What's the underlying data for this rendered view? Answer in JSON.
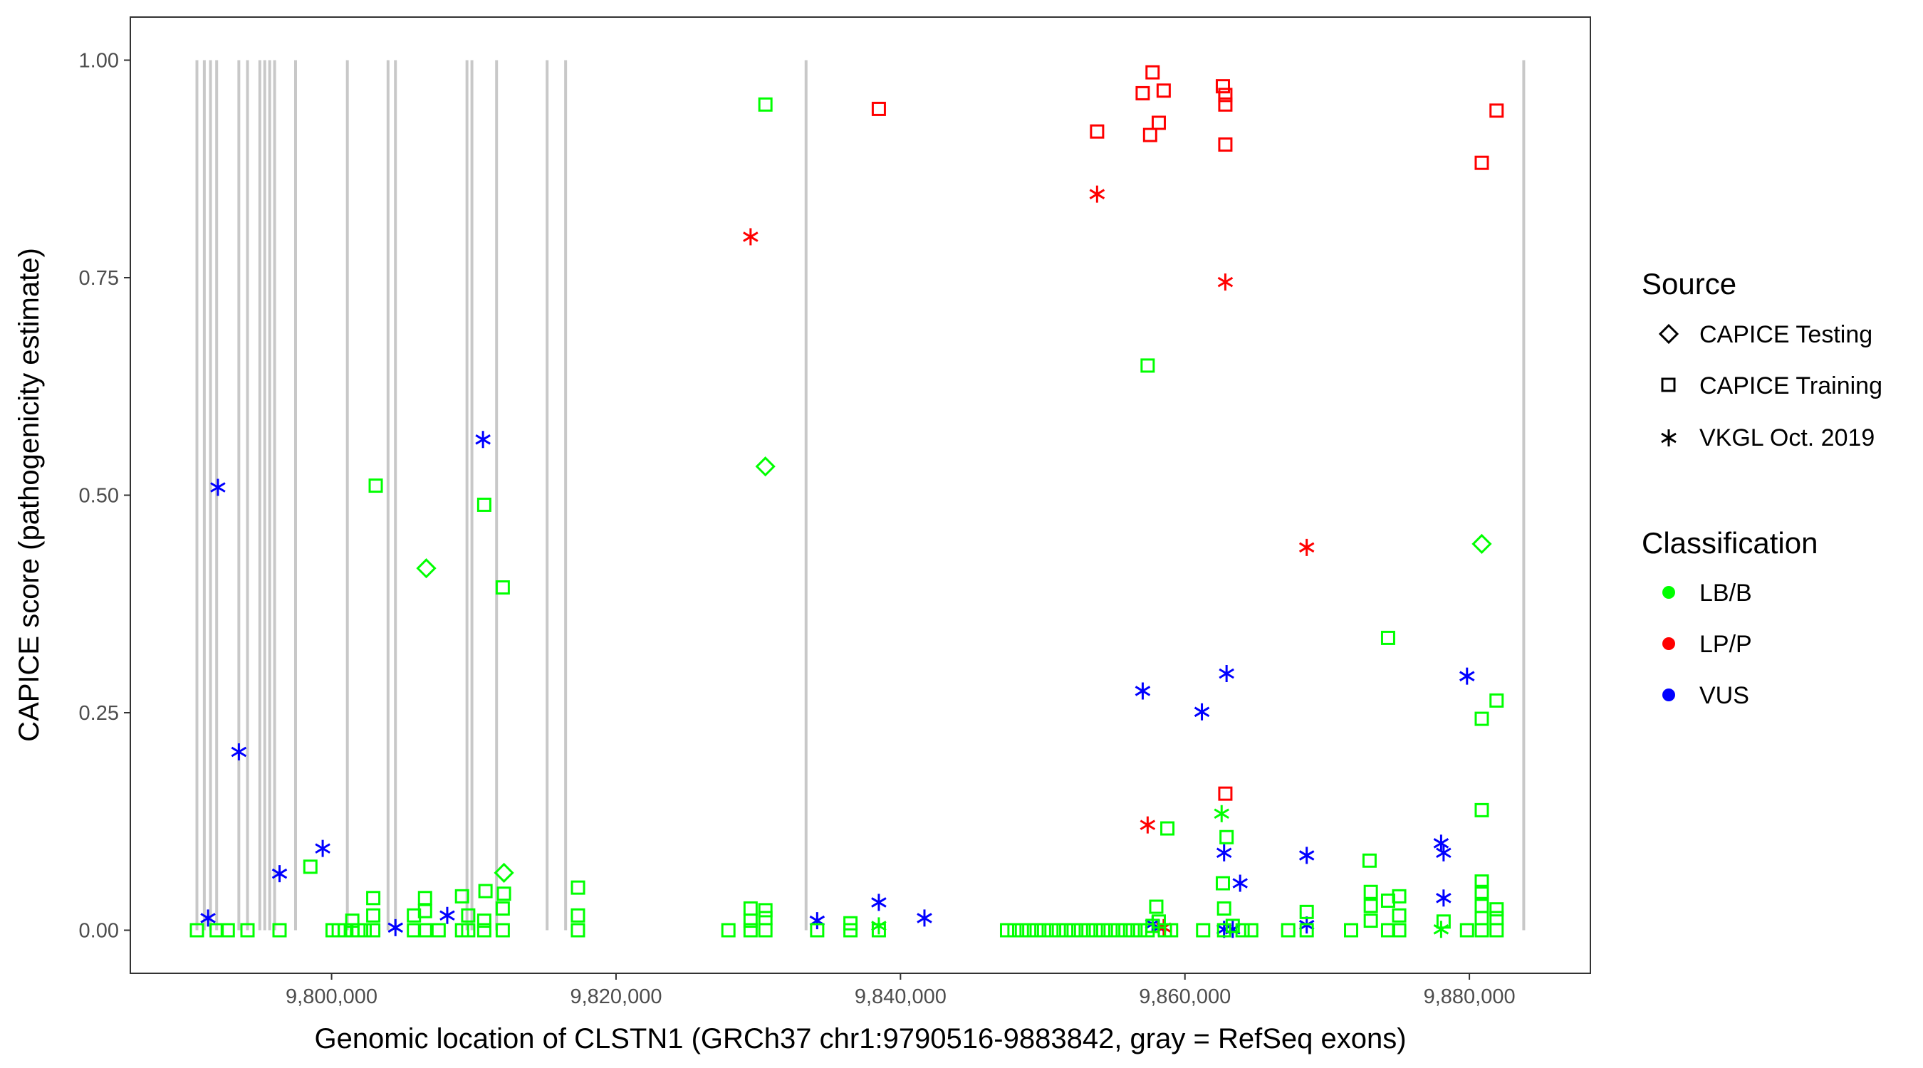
{
  "chart_data": {
    "type": "scatter",
    "xlabel": "Genomic location of CLSTN1 (GRCh37 chr1:9790516-9883842, gray = RefSeq exons)",
    "ylabel": "CAPICE score (pathogenicity estimate)",
    "xlim": [
      9785850,
      9888508
    ],
    "ylim": [
      -0.0495,
      1.0495
    ],
    "x_ticks": [
      9800000,
      9820000,
      9840000,
      9860000,
      9880000
    ],
    "x_tick_labels": [
      "9,800,000",
      "9,820,000",
      "9,840,000",
      "9,860,000",
      "9,880,000"
    ],
    "y_ticks": [
      0,
      0.25,
      0.5,
      0.75,
      1.0
    ],
    "y_tick_labels": [
      "0.00",
      "0.25",
      "0.50",
      "0.75",
      "1.00"
    ],
    "grid": false,
    "exon_lines_color": "#c8c8c8",
    "exon_positions": [
      9790532,
      9791052,
      9791486,
      9791919,
      9793480,
      9794087,
      9794954,
      9795300,
      9795647,
      9795994,
      9797468,
      9801109,
      9803970,
      9804490,
      9809519,
      9809866,
      9811600,
      9815155,
      9816455,
      9833362,
      9883821
    ],
    "legend": {
      "placement": "right",
      "source_title": "Source",
      "source_entries": [
        {
          "label": "CAPICE Testing",
          "shape": "diamond"
        },
        {
          "label": "CAPICE Training",
          "shape": "square"
        },
        {
          "label": "VKGL Oct. 2019",
          "shape": "asterisk"
        }
      ],
      "class_title": "Classification",
      "class_entries": [
        {
          "label": "LB/B",
          "color": "#00ff00"
        },
        {
          "label": "LP/P",
          "color": "#ff0000"
        },
        {
          "label": "VUS",
          "color": "#0000ff"
        }
      ]
    },
    "points": [
      [
        9792006,
        0.509,
        "VKGL Oct. 2019",
        "VUS"
      ],
      [
        9793480,
        0.205,
        "VKGL Oct. 2019",
        "VUS"
      ],
      [
        9791312,
        0.014,
        "VKGL Oct. 2019",
        "VUS"
      ],
      [
        9796341,
        0.065,
        "VKGL Oct. 2019",
        "VUS"
      ],
      [
        9799375,
        0.094,
        "VKGL Oct. 2019",
        "VUS"
      ],
      [
        9804490,
        0.003,
        "VKGL Oct. 2019",
        "VUS"
      ],
      [
        9808132,
        0.017,
        "VKGL Oct. 2019",
        "VUS"
      ],
      [
        9810646,
        0.564,
        "VKGL Oct. 2019",
        "VUS"
      ],
      [
        9834142,
        0.011,
        "VKGL Oct. 2019",
        "VUS"
      ],
      [
        9838477,
        0.032,
        "VKGL Oct. 2019",
        "VUS"
      ],
      [
        9841685,
        0.014,
        "VKGL Oct. 2019",
        "VUS"
      ],
      [
        9857031,
        0.275,
        "VKGL Oct. 2019",
        "VUS"
      ],
      [
        9861193,
        0.251,
        "VKGL Oct. 2019",
        "VUS"
      ],
      [
        9862927,
        0.295,
        "VKGL Oct. 2019",
        "VUS"
      ],
      [
        9862753,
        0.089,
        "VKGL Oct. 2019",
        "VUS"
      ],
      [
        9863880,
        0.054,
        "VKGL Oct. 2019",
        "VUS"
      ],
      [
        9868562,
        0.086,
        "VKGL Oct. 2019",
        "VUS"
      ],
      [
        9868562,
        0.006,
        "VKGL Oct. 2019",
        "VUS"
      ],
      [
        9879833,
        0.292,
        "VKGL Oct. 2019",
        "VUS"
      ],
      [
        9878012,
        0.1,
        "VKGL Oct. 2019",
        "VUS"
      ],
      [
        9878186,
        0.089,
        "VKGL Oct. 2019",
        "VUS"
      ],
      [
        9878186,
        0.037,
        "VKGL Oct. 2019",
        "VUS"
      ],
      [
        9857725,
        0.007,
        "VKGL Oct. 2019",
        "VUS"
      ],
      [
        9858160,
        0.003,
        "VKGL Oct. 2019",
        "VUS"
      ],
      [
        9862753,
        0.001,
        "VKGL Oct. 2019",
        "VUS"
      ],
      [
        9863360,
        0.001,
        "VKGL Oct. 2019",
        "VUS"
      ],
      [
        9829460,
        0.797,
        "VKGL Oct. 2019",
        "LP/P"
      ],
      [
        9853823,
        0.846,
        "VKGL Oct. 2019",
        "LP/P"
      ],
      [
        9862840,
        0.745,
        "VKGL Oct. 2019",
        "LP/P"
      ],
      [
        9868562,
        0.44,
        "VKGL Oct. 2019",
        "LP/P"
      ],
      [
        9857378,
        0.121,
        "VKGL Oct. 2019",
        "LP/P"
      ],
      [
        9858505,
        0.003,
        "VKGL Oct. 2019",
        "LP/P"
      ],
      [
        9862580,
        0.134,
        "VKGL Oct. 2019",
        "LB/B"
      ],
      [
        9838477,
        0.005,
        "VKGL Oct. 2019",
        "LB/B"
      ],
      [
        9878012,
        0.001,
        "VKGL Oct. 2019",
        "LB/B"
      ],
      [
        9838477,
        0.944,
        "CAPICE Training",
        "LP/P"
      ],
      [
        9853823,
        0.918,
        "CAPICE Training",
        "LP/P"
      ],
      [
        9857725,
        0.986,
        "CAPICE Training",
        "LP/P"
      ],
      [
        9857031,
        0.962,
        "CAPICE Training",
        "LP/P"
      ],
      [
        9858505,
        0.965,
        "CAPICE Training",
        "LP/P"
      ],
      [
        9858160,
        0.928,
        "CAPICE Training",
        "LP/P"
      ],
      [
        9857552,
        0.914,
        "CAPICE Training",
        "LP/P"
      ],
      [
        9862667,
        0.97,
        "CAPICE Training",
        "LP/P"
      ],
      [
        9862840,
        0.96,
        "CAPICE Training",
        "LP/P"
      ],
      [
        9862840,
        0.949,
        "CAPICE Training",
        "LP/P"
      ],
      [
        9862840,
        0.903,
        "CAPICE Training",
        "LP/P"
      ],
      [
        9881912,
        0.942,
        "CAPICE Training",
        "LP/P"
      ],
      [
        9880871,
        0.882,
        "CAPICE Training",
        "LP/P"
      ],
      [
        9862840,
        0.157,
        "CAPICE Training",
        "LP/P"
      ],
      [
        9830502,
        0.949,
        "CAPICE Training",
        "LB/B"
      ],
      [
        9803103,
        0.511,
        "CAPICE Training",
        "LB/B"
      ],
      [
        9810733,
        0.489,
        "CAPICE Training",
        "LB/B"
      ],
      [
        9812034,
        0.394,
        "CAPICE Training",
        "LB/B"
      ],
      [
        9857378,
        0.649,
        "CAPICE Training",
        "LB/B"
      ],
      [
        9874284,
        0.336,
        "CAPICE Training",
        "LB/B"
      ],
      [
        9881912,
        0.264,
        "CAPICE Training",
        "LB/B"
      ],
      [
        9880871,
        0.243,
        "CAPICE Training",
        "LB/B"
      ],
      [
        9880871,
        0.138,
        "CAPICE Training",
        "LB/B"
      ],
      [
        9858765,
        0.117,
        "CAPICE Training",
        "LB/B"
      ],
      [
        9862927,
        0.107,
        "CAPICE Training",
        "LB/B"
      ],
      [
        9798508,
        0.073,
        "CAPICE Training",
        "LB/B"
      ],
      [
        9872980,
        0.08,
        "CAPICE Training",
        "LB/B"
      ],
      [
        9817326,
        0.049,
        "CAPICE Training",
        "LB/B"
      ],
      [
        9880871,
        0.056,
        "CAPICE Training",
        "LB/B"
      ],
      [
        9880871,
        0.044,
        "CAPICE Training",
        "LB/B"
      ],
      [
        9873067,
        0.044,
        "CAPICE Training",
        "LB/B"
      ],
      [
        9862667,
        0.054,
        "CAPICE Training",
        "LB/B"
      ],
      [
        9810819,
        0.045,
        "CAPICE Training",
        "LB/B"
      ],
      [
        9812120,
        0.042,
        "CAPICE Training",
        "LB/B"
      ],
      [
        9809172,
        0.039,
        "CAPICE Training",
        "LB/B"
      ],
      [
        9806571,
        0.037,
        "CAPICE Training",
        "LB/B"
      ],
      [
        9802930,
        0.037,
        "CAPICE Training",
        "LB/B"
      ],
      [
        9875064,
        0.039,
        "CAPICE Training",
        "LB/B"
      ],
      [
        9874284,
        0.034,
        "CAPICE Training",
        "LB/B"
      ],
      [
        9857985,
        0.027,
        "CAPICE Training",
        "LB/B"
      ],
      [
        9862753,
        0.025,
        "CAPICE Training",
        "LB/B"
      ],
      [
        9829460,
        0.025,
        "CAPICE Training",
        "LB/B"
      ],
      [
        9830502,
        0.023,
        "CAPICE Training",
        "LB/B"
      ],
      [
        9881912,
        0.024,
        "CAPICE Training",
        "LB/B"
      ],
      [
        9868562,
        0.021,
        "CAPICE Training",
        "LB/B"
      ],
      [
        9812034,
        0.025,
        "CAPICE Training",
        "LB/B"
      ],
      [
        9880871,
        0.028,
        "CAPICE Training",
        "LB/B"
      ],
      [
        9873067,
        0.028,
        "CAPICE Training",
        "LB/B"
      ],
      [
        9801456,
        0.011,
        "CAPICE Training",
        "LB/B"
      ],
      [
        9805791,
        0.017,
        "CAPICE Training",
        "LB/B"
      ],
      [
        9806571,
        0.022,
        "CAPICE Training",
        "LB/B"
      ],
      [
        9802930,
        0.017,
        "CAPICE Training",
        "LB/B"
      ],
      [
        9809606,
        0.017,
        "CAPICE Training",
        "LB/B"
      ],
      [
        9810733,
        0.011,
        "CAPICE Training",
        "LB/B"
      ],
      [
        9817322,
        0.017,
        "CAPICE Training",
        "LB/B"
      ],
      [
        9875064,
        0.017,
        "CAPICE Training",
        "LB/B"
      ],
      [
        9873067,
        0.011,
        "CAPICE Training",
        "LB/B"
      ],
      [
        9880871,
        0.014,
        "CAPICE Training",
        "LB/B"
      ],
      [
        9881912,
        0.014,
        "CAPICE Training",
        "LB/B"
      ],
      [
        9836483,
        0.008,
        "CAPICE Training",
        "LB/B"
      ],
      [
        9829460,
        0.011,
        "CAPICE Training",
        "LB/B"
      ],
      [
        9830502,
        0.014,
        "CAPICE Training",
        "LB/B"
      ],
      [
        9878186,
        0.01,
        "CAPICE Training",
        "LB/B"
      ],
      [
        9790532,
        0,
        "CAPICE Training",
        "LB/B"
      ],
      [
        9791919,
        0,
        "CAPICE Training",
        "LB/B"
      ],
      [
        9792699,
        0,
        "CAPICE Training",
        "LB/B"
      ],
      [
        9794087,
        0,
        "CAPICE Training",
        "LB/B"
      ],
      [
        9796341,
        0,
        "CAPICE Training",
        "LB/B"
      ],
      [
        9800069,
        0,
        "CAPICE Training",
        "LB/B"
      ],
      [
        9800502,
        0,
        "CAPICE Training",
        "LB/B"
      ],
      [
        9800936,
        0,
        "CAPICE Training",
        "LB/B"
      ],
      [
        9801456,
        0,
        "CAPICE Training",
        "LB/B"
      ],
      [
        9801890,
        0,
        "CAPICE Training",
        "LB/B"
      ],
      [
        9802323,
        0,
        "CAPICE Training",
        "LB/B"
      ],
      [
        9802930,
        0,
        "CAPICE Training",
        "LB/B"
      ],
      [
        9805791,
        0,
        "CAPICE Training",
        "LB/B"
      ],
      [
        9806571,
        0,
        "CAPICE Training",
        "LB/B"
      ],
      [
        9807525,
        0,
        "CAPICE Training",
        "LB/B"
      ],
      [
        9809172,
        0,
        "CAPICE Training",
        "LB/B"
      ],
      [
        9809606,
        0,
        "CAPICE Training",
        "LB/B"
      ],
      [
        9810733,
        0,
        "CAPICE Training",
        "LB/B"
      ],
      [
        9812034,
        0,
        "CAPICE Training",
        "LB/B"
      ],
      [
        9817322,
        0,
        "CAPICE Training",
        "LB/B"
      ],
      [
        9827900,
        0,
        "CAPICE Training",
        "LB/B"
      ],
      [
        9829460,
        0,
        "CAPICE Training",
        "LB/B"
      ],
      [
        9830502,
        0,
        "CAPICE Training",
        "LB/B"
      ],
      [
        9834142,
        0,
        "CAPICE Training",
        "LB/B"
      ],
      [
        9836483,
        0,
        "CAPICE Training",
        "LB/B"
      ],
      [
        9838477,
        0,
        "CAPICE Training",
        "LB/B"
      ],
      [
        9847494,
        0,
        "CAPICE Training",
        "LB/B"
      ],
      [
        9848014,
        0,
        "CAPICE Training",
        "LB/B"
      ],
      [
        9848534,
        0,
        "CAPICE Training",
        "LB/B"
      ],
      [
        9849054,
        0,
        "CAPICE Training",
        "LB/B"
      ],
      [
        9849574,
        0,
        "CAPICE Training",
        "LB/B"
      ],
      [
        9850094,
        0,
        "CAPICE Training",
        "LB/B"
      ],
      [
        9850614,
        0,
        "CAPICE Training",
        "LB/B"
      ],
      [
        9851134,
        0,
        "CAPICE Training",
        "LB/B"
      ],
      [
        9851654,
        0,
        "CAPICE Training",
        "LB/B"
      ],
      [
        9852174,
        0,
        "CAPICE Training",
        "LB/B"
      ],
      [
        9852694,
        0,
        "CAPICE Training",
        "LB/B"
      ],
      [
        9853214,
        0,
        "CAPICE Training",
        "LB/B"
      ],
      [
        9853734,
        0,
        "CAPICE Training",
        "LB/B"
      ],
      [
        9854254,
        0,
        "CAPICE Training",
        "LB/B"
      ],
      [
        9854774,
        0,
        "CAPICE Training",
        "LB/B"
      ],
      [
        9855294,
        0,
        "CAPICE Training",
        "LB/B"
      ],
      [
        9855814,
        0,
        "CAPICE Training",
        "LB/B"
      ],
      [
        9856334,
        0,
        "CAPICE Training",
        "LB/B"
      ],
      [
        9856854,
        0,
        "CAPICE Training",
        "LB/B"
      ],
      [
        9857378,
        0,
        "CAPICE Training",
        "LB/B"
      ],
      [
        9857725,
        0.005,
        "CAPICE Training",
        "LB/B"
      ],
      [
        9858160,
        0.01,
        "CAPICE Training",
        "LB/B"
      ],
      [
        9858593,
        0,
        "CAPICE Training",
        "LB/B"
      ],
      [
        9859025,
        0,
        "CAPICE Training",
        "LB/B"
      ],
      [
        9861279,
        0,
        "CAPICE Training",
        "LB/B"
      ],
      [
        9862753,
        0,
        "CAPICE Training",
        "LB/B"
      ],
      [
        9863360,
        0.005,
        "CAPICE Training",
        "LB/B"
      ],
      [
        9864053,
        0,
        "CAPICE Training",
        "LB/B"
      ],
      [
        9864660,
        0,
        "CAPICE Training",
        "LB/B"
      ],
      [
        9867261,
        0,
        "CAPICE Training",
        "LB/B"
      ],
      [
        9868562,
        0,
        "CAPICE Training",
        "LB/B"
      ],
      [
        9871683,
        0,
        "CAPICE Training",
        "LB/B"
      ],
      [
        9874284,
        0,
        "CAPICE Training",
        "LB/B"
      ],
      [
        9875064,
        0,
        "CAPICE Training",
        "LB/B"
      ],
      [
        9879833,
        0,
        "CAPICE Training",
        "LB/B"
      ],
      [
        9880873,
        0,
        "CAPICE Training",
        "LB/B"
      ],
      [
        9881913,
        0,
        "CAPICE Training",
        "LB/B"
      ],
      [
        9806658,
        0.416,
        "CAPICE Testing",
        "LB/B"
      ],
      [
        9830502,
        0.533,
        "CAPICE Testing",
        "LB/B"
      ],
      [
        9812120,
        0.066,
        "CAPICE Testing",
        "LB/B"
      ],
      [
        9880871,
        0.444,
        "CAPICE Testing",
        "LB/B"
      ]
    ]
  }
}
